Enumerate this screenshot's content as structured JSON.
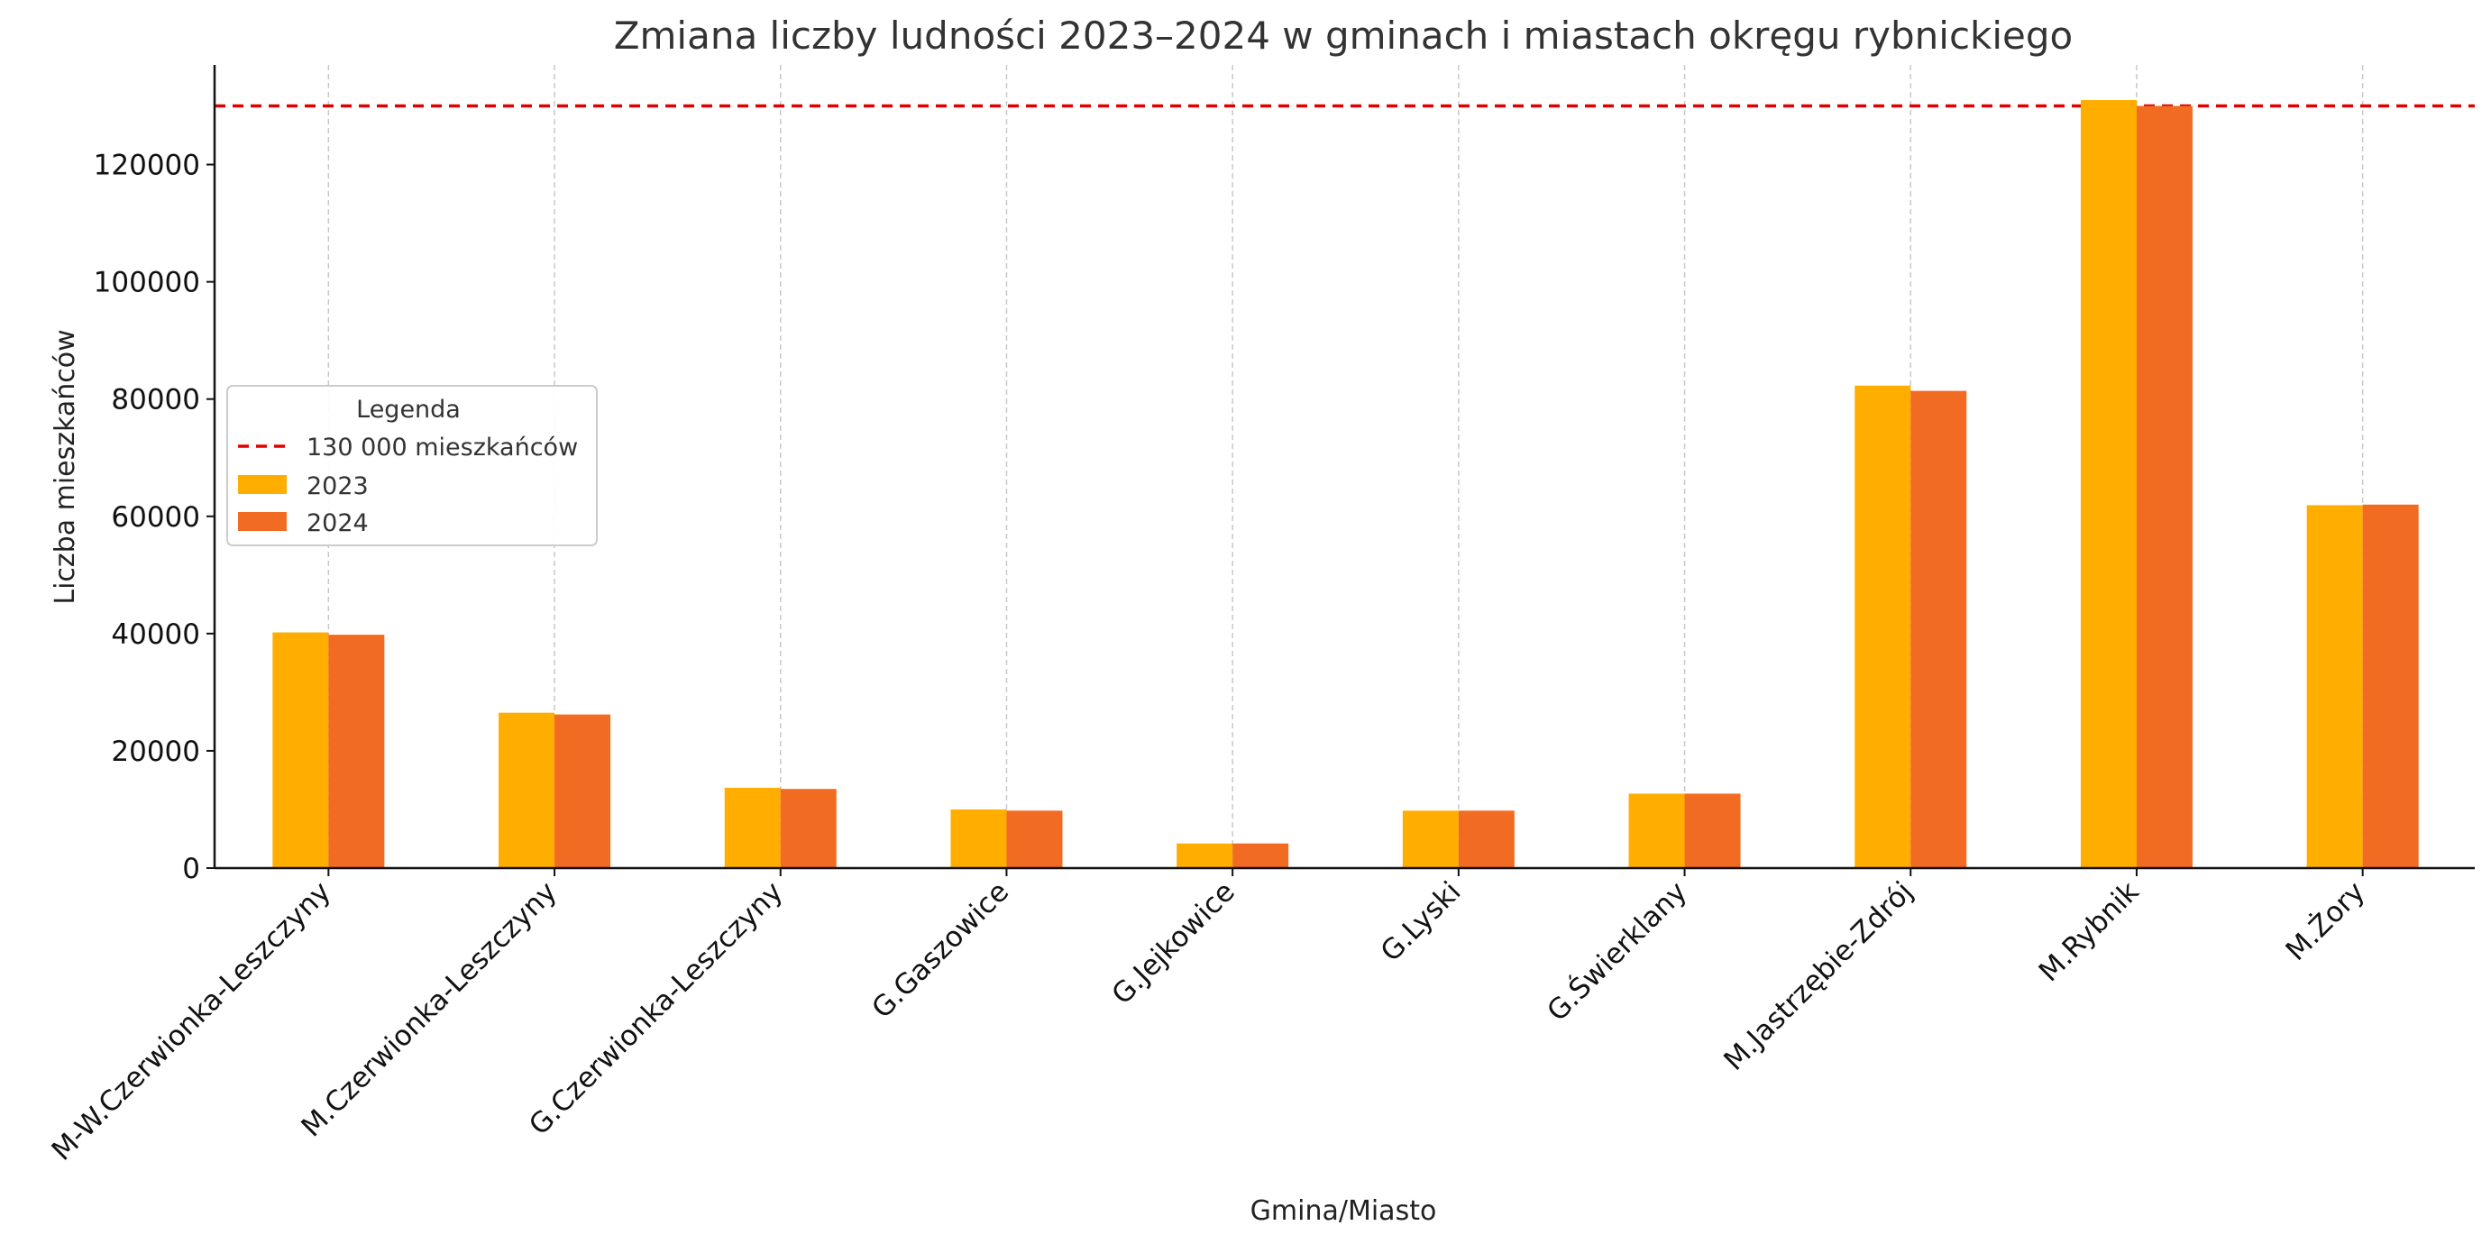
{
  "chart_data": {
    "type": "bar",
    "title": "Zmiana liczby ludności 2023–2024 w gminach i miastach okręgu rybnickiego",
    "xlabel": "Gmina/Miasto",
    "ylabel": "Liczba mieszkańców",
    "ylim": [
      0,
      137000
    ],
    "yticks": [
      0,
      20000,
      40000,
      60000,
      80000,
      100000,
      120000
    ],
    "ytick_labels": [
      "0",
      "20000",
      "40000",
      "60000",
      "80000",
      "100000",
      "120000"
    ],
    "categories": [
      "M-W.Czerwionka-Leszczyny",
      "M.Czerwionka-Leszczyny",
      "G.Czerwionka-Leszczyny",
      "G.Gaszowice",
      "G.Jejkowice",
      "G.Lyski",
      "G.Świerklany",
      "M.Jastrzębie-Zdrój",
      "M.Rybnik",
      "M.Żory"
    ],
    "series": [
      {
        "name": "2023",
        "color": "#FFAE00",
        "values": [
          40200,
          26500,
          13700,
          10000,
          4200,
          9800,
          12700,
          82300,
          131000,
          61900
        ]
      },
      {
        "name": "2024",
        "color": "#F26B22",
        "values": [
          39800,
          26200,
          13500,
          9800,
          4200,
          9800,
          12700,
          81400,
          130000,
          62000
        ]
      }
    ],
    "reference_line": {
      "value": 130000,
      "label": "130 000 mieszkańców",
      "color": "#E00000",
      "style": "dashed"
    },
    "grid": {
      "x": true,
      "y": false
    },
    "legend": {
      "title": "Legenda",
      "placement": "center-left"
    }
  }
}
